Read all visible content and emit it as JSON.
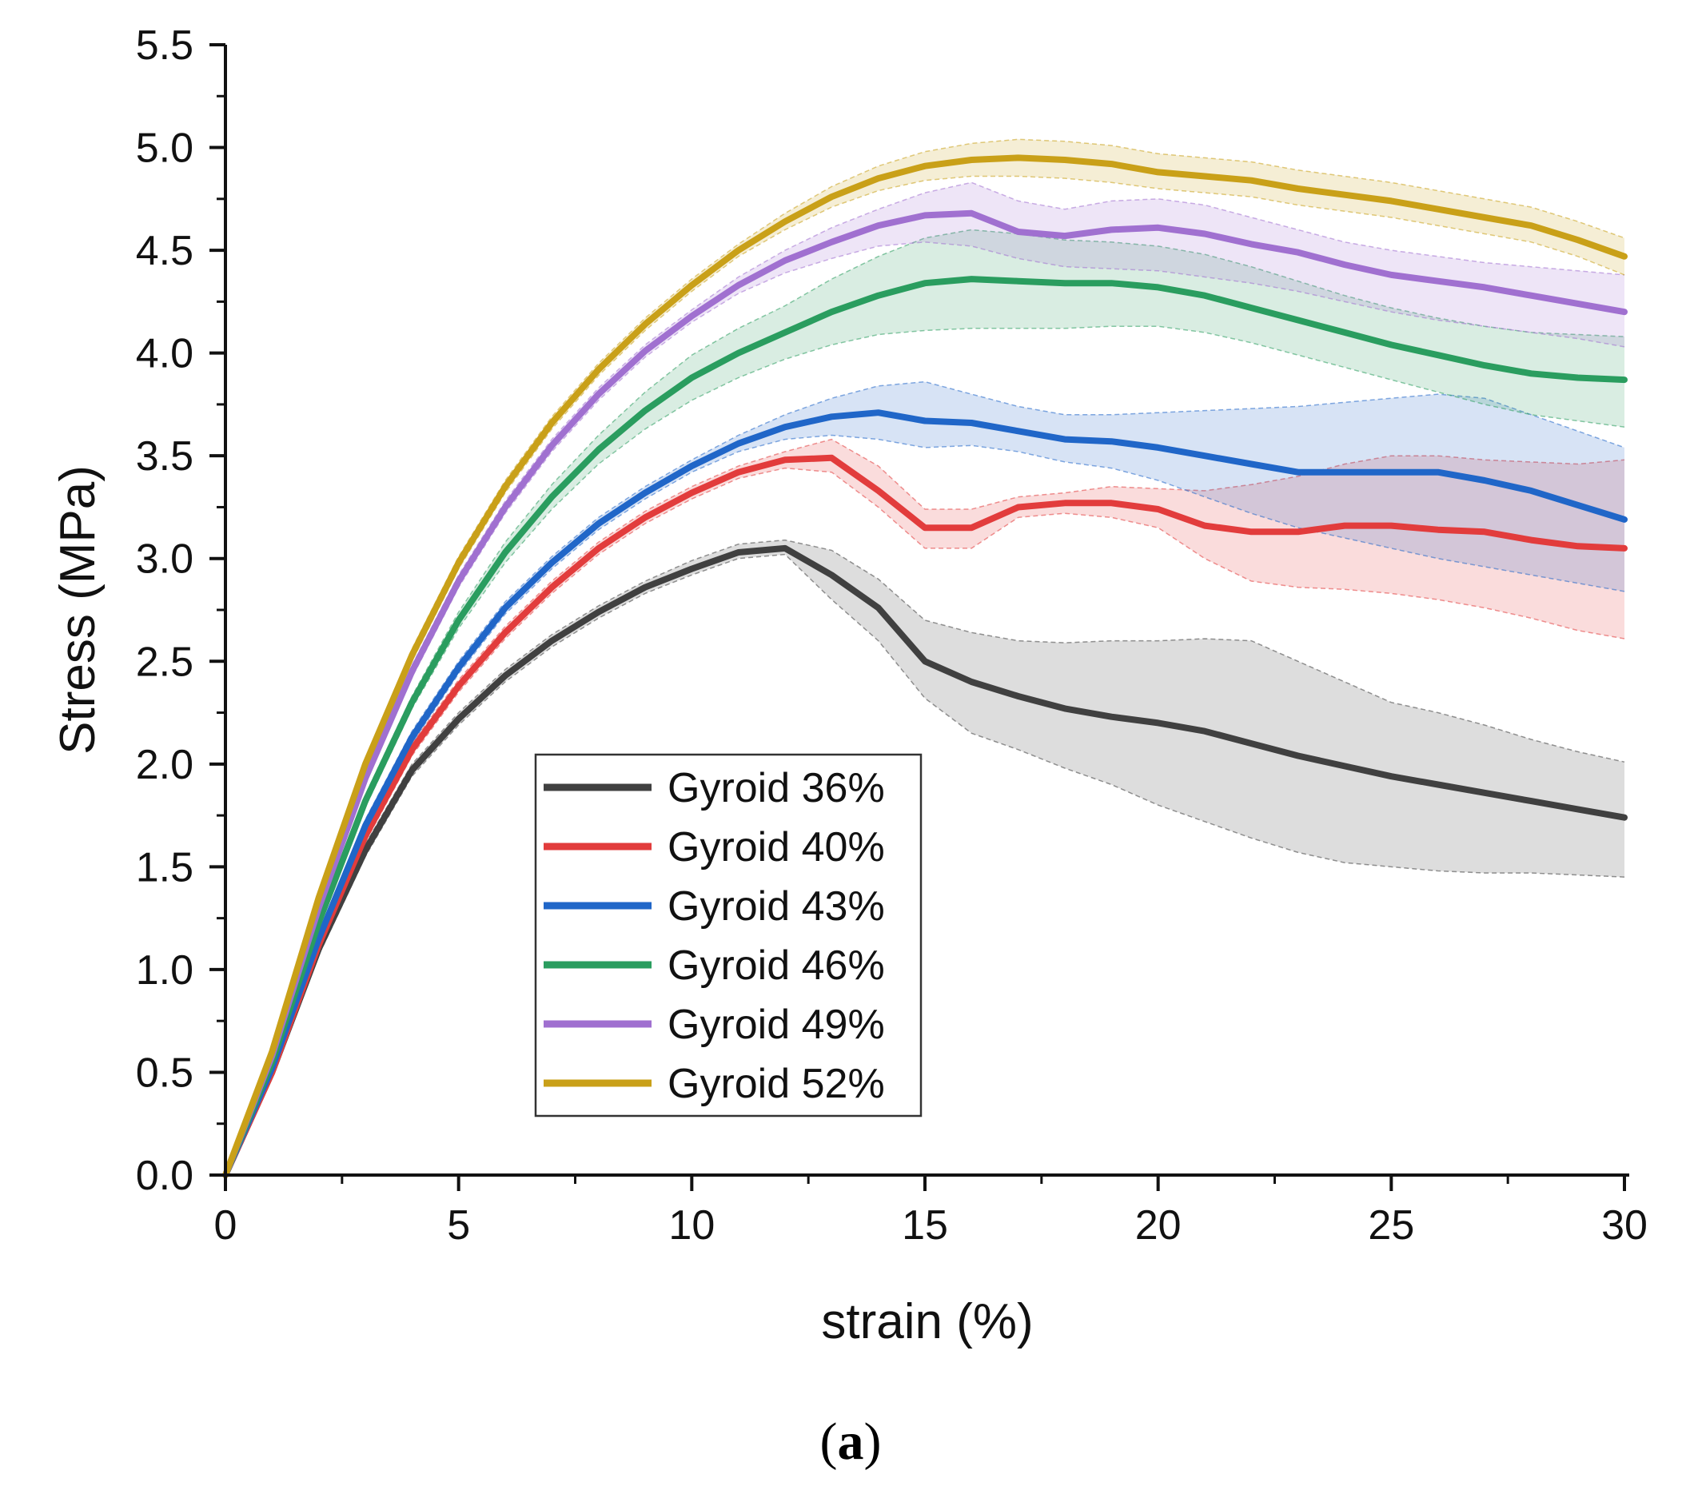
{
  "chart_data": {
    "type": "line",
    "title": "",
    "xlabel": "strain (%)",
    "ylabel": "Stress (MPa)",
    "xlim": [
      0,
      30
    ],
    "ylim": [
      0,
      5.5
    ],
    "xticks": [
      "0",
      "5",
      "10",
      "15",
      "20",
      "25",
      "30"
    ],
    "yticks": [
      "0.0",
      "0.5",
      "1.0",
      "1.5",
      "2.0",
      "2.5",
      "3.0",
      "3.5",
      "4.0",
      "4.5",
      "5.0",
      "5.5"
    ],
    "grid": false,
    "legend_position": "lower-center",
    "panel_label": "a",
    "panel_label_open": "(",
    "panel_label_close": ")",
    "series": [
      {
        "name": "Gyroid 36%",
        "color": "#404040",
        "x": [
          0,
          1,
          2,
          3,
          4,
          5,
          6,
          7,
          8,
          9,
          10,
          11,
          12,
          13,
          14,
          15,
          16,
          17,
          18,
          19,
          20,
          21,
          22,
          23,
          24,
          25,
          26,
          27,
          28,
          29,
          30
        ],
        "y": [
          0,
          0.5,
          1.1,
          1.58,
          1.97,
          2.22,
          2.43,
          2.6,
          2.74,
          2.86,
          2.95,
          3.03,
          3.05,
          2.92,
          2.76,
          2.5,
          2.4,
          2.33,
          2.27,
          2.23,
          2.2,
          2.16,
          2.1,
          2.04,
          1.99,
          1.94,
          1.9,
          1.86,
          1.82,
          1.78,
          1.74
        ],
        "lower": [
          0,
          0.48,
          1.07,
          1.55,
          1.94,
          2.19,
          2.4,
          2.57,
          2.71,
          2.83,
          2.92,
          3.0,
          3.02,
          2.8,
          2.6,
          2.32,
          2.15,
          2.07,
          1.98,
          1.9,
          1.8,
          1.72,
          1.64,
          1.57,
          1.52,
          1.5,
          1.48,
          1.47,
          1.47,
          1.46,
          1.45
        ],
        "upper": [
          0,
          0.52,
          1.13,
          1.61,
          2.0,
          2.25,
          2.46,
          2.63,
          2.77,
          2.89,
          2.99,
          3.07,
          3.09,
          3.04,
          2.9,
          2.7,
          2.64,
          2.6,
          2.59,
          2.6,
          2.6,
          2.61,
          2.6,
          2.5,
          2.4,
          2.3,
          2.25,
          2.19,
          2.12,
          2.06,
          2.01
        ]
      },
      {
        "name": "Gyroid 40%",
        "color": "#e23c3c",
        "x": [
          0,
          1,
          2,
          3,
          4,
          5,
          6,
          7,
          8,
          9,
          10,
          11,
          12,
          13,
          14,
          15,
          16,
          17,
          18,
          19,
          20,
          21,
          22,
          23,
          24,
          25,
          26,
          27,
          28,
          29,
          30
        ],
        "y": [
          0,
          0.5,
          1.12,
          1.65,
          2.07,
          2.38,
          2.64,
          2.86,
          3.05,
          3.2,
          3.32,
          3.42,
          3.48,
          3.49,
          3.33,
          3.15,
          3.15,
          3.25,
          3.27,
          3.27,
          3.24,
          3.16,
          3.13,
          3.13,
          3.16,
          3.16,
          3.14,
          3.13,
          3.09,
          3.06,
          3.05
        ],
        "lower": [
          0,
          0.48,
          1.09,
          1.62,
          2.04,
          2.35,
          2.61,
          2.83,
          3.02,
          3.17,
          3.29,
          3.39,
          3.44,
          3.42,
          3.25,
          3.05,
          3.05,
          3.2,
          3.22,
          3.2,
          3.15,
          3.0,
          2.89,
          2.86,
          2.85,
          2.83,
          2.8,
          2.76,
          2.71,
          2.65,
          2.61
        ],
        "upper": [
          0,
          0.52,
          1.15,
          1.68,
          2.1,
          2.41,
          2.67,
          2.89,
          3.08,
          3.23,
          3.35,
          3.45,
          3.52,
          3.58,
          3.45,
          3.24,
          3.24,
          3.3,
          3.32,
          3.35,
          3.34,
          3.33,
          3.36,
          3.4,
          3.46,
          3.5,
          3.5,
          3.48,
          3.47,
          3.46,
          3.48
        ]
      },
      {
        "name": "Gyroid 43%",
        "color": "#2066c8",
        "x": [
          0,
          1,
          2,
          3,
          4,
          5,
          6,
          7,
          8,
          9,
          10,
          11,
          12,
          13,
          14,
          15,
          16,
          17,
          18,
          19,
          20,
          21,
          22,
          23,
          24,
          25,
          26,
          27,
          28,
          29,
          30
        ],
        "y": [
          0,
          0.52,
          1.15,
          1.7,
          2.13,
          2.47,
          2.76,
          2.98,
          3.17,
          3.32,
          3.45,
          3.56,
          3.64,
          3.69,
          3.71,
          3.67,
          3.66,
          3.62,
          3.58,
          3.57,
          3.54,
          3.5,
          3.46,
          3.42,
          3.42,
          3.42,
          3.42,
          3.38,
          3.33,
          3.26,
          3.19
        ],
        "lower": [
          0,
          0.5,
          1.12,
          1.67,
          2.1,
          2.44,
          2.73,
          2.95,
          3.14,
          3.29,
          3.42,
          3.52,
          3.58,
          3.6,
          3.58,
          3.54,
          3.55,
          3.52,
          3.47,
          3.44,
          3.38,
          3.3,
          3.22,
          3.15,
          3.1,
          3.05,
          3.0,
          2.96,
          2.92,
          2.88,
          2.84
        ],
        "upper": [
          0,
          0.54,
          1.18,
          1.73,
          2.16,
          2.5,
          2.79,
          3.01,
          3.2,
          3.35,
          3.48,
          3.6,
          3.7,
          3.78,
          3.84,
          3.86,
          3.8,
          3.74,
          3.7,
          3.7,
          3.71,
          3.72,
          3.73,
          3.74,
          3.76,
          3.78,
          3.8,
          3.78,
          3.7,
          3.62,
          3.54
        ]
      },
      {
        "name": "Gyroid 46%",
        "color": "#2a9d5f",
        "x": [
          0,
          1,
          2,
          3,
          4,
          5,
          6,
          7,
          8,
          9,
          10,
          11,
          12,
          13,
          14,
          15,
          16,
          17,
          18,
          19,
          20,
          21,
          22,
          23,
          24,
          25,
          26,
          27,
          28,
          29,
          30
        ],
        "y": [
          0,
          0.55,
          1.23,
          1.82,
          2.3,
          2.7,
          3.03,
          3.3,
          3.53,
          3.72,
          3.88,
          4.0,
          4.1,
          4.2,
          4.28,
          4.34,
          4.36,
          4.35,
          4.34,
          4.34,
          4.32,
          4.28,
          4.22,
          4.16,
          4.1,
          4.04,
          3.99,
          3.94,
          3.9,
          3.88,
          3.87
        ],
        "lower": [
          0,
          0.53,
          1.2,
          1.79,
          2.27,
          2.66,
          2.98,
          3.24,
          3.46,
          3.63,
          3.77,
          3.88,
          3.97,
          4.04,
          4.09,
          4.11,
          4.12,
          4.12,
          4.12,
          4.13,
          4.13,
          4.1,
          4.05,
          3.99,
          3.93,
          3.87,
          3.81,
          3.75,
          3.7,
          3.67,
          3.64
        ],
        "upper": [
          0,
          0.57,
          1.26,
          1.85,
          2.33,
          2.74,
          3.08,
          3.36,
          3.6,
          3.81,
          3.99,
          4.12,
          4.23,
          4.36,
          4.47,
          4.56,
          4.6,
          4.58,
          4.55,
          4.54,
          4.52,
          4.48,
          4.42,
          4.35,
          4.28,
          4.22,
          4.17,
          4.13,
          4.1,
          4.09,
          4.08
        ]
      },
      {
        "name": "Gyroid 49%",
        "color": "#a070d0",
        "x": [
          0,
          1,
          2,
          3,
          4,
          5,
          6,
          7,
          8,
          9,
          10,
          11,
          12,
          13,
          14,
          15,
          16,
          17,
          18,
          19,
          20,
          21,
          22,
          23,
          24,
          25,
          26,
          27,
          28,
          29,
          30
        ],
        "y": [
          0,
          0.58,
          1.3,
          1.93,
          2.45,
          2.89,
          3.25,
          3.55,
          3.8,
          4.01,
          4.18,
          4.33,
          4.45,
          4.54,
          4.62,
          4.67,
          4.68,
          4.59,
          4.57,
          4.6,
          4.61,
          4.58,
          4.53,
          4.49,
          4.43,
          4.38,
          4.35,
          4.32,
          4.28,
          4.24,
          4.2
        ],
        "lower": [
          0,
          0.56,
          1.27,
          1.9,
          2.42,
          2.86,
          3.22,
          3.52,
          3.77,
          3.98,
          4.15,
          4.29,
          4.39,
          4.46,
          4.52,
          4.54,
          4.52,
          4.46,
          4.42,
          4.41,
          4.4,
          4.37,
          4.34,
          4.3,
          4.25,
          4.2,
          4.16,
          4.13,
          4.1,
          4.07,
          4.03
        ],
        "upper": [
          0,
          0.6,
          1.33,
          1.96,
          2.48,
          2.92,
          3.28,
          3.58,
          3.83,
          4.04,
          4.21,
          4.37,
          4.5,
          4.61,
          4.7,
          4.78,
          4.83,
          4.74,
          4.7,
          4.74,
          4.75,
          4.72,
          4.66,
          4.6,
          4.54,
          4.5,
          4.47,
          4.44,
          4.42,
          4.4,
          4.38
        ]
      },
      {
        "name": "Gyroid 52%",
        "color": "#c9a018",
        "x": [
          0,
          1,
          2,
          3,
          4,
          5,
          6,
          7,
          8,
          9,
          10,
          11,
          12,
          13,
          14,
          15,
          16,
          17,
          18,
          19,
          20,
          21,
          22,
          23,
          24,
          25,
          26,
          27,
          28,
          29,
          30
        ],
        "y": [
          0,
          0.6,
          1.35,
          2.0,
          2.53,
          2.98,
          3.35,
          3.66,
          3.92,
          4.14,
          4.33,
          4.5,
          4.64,
          4.76,
          4.85,
          4.91,
          4.94,
          4.95,
          4.94,
          4.92,
          4.88,
          4.86,
          4.84,
          4.8,
          4.77,
          4.74,
          4.7,
          4.66,
          4.62,
          4.55,
          4.47
        ],
        "lower": [
          0,
          0.58,
          1.32,
          1.97,
          2.5,
          2.95,
          3.32,
          3.63,
          3.89,
          4.11,
          4.3,
          4.47,
          4.6,
          4.71,
          4.79,
          4.84,
          4.86,
          4.86,
          4.85,
          4.83,
          4.8,
          4.78,
          4.76,
          4.72,
          4.69,
          4.66,
          4.62,
          4.58,
          4.54,
          4.47,
          4.38
        ],
        "upper": [
          0,
          0.62,
          1.38,
          2.03,
          2.56,
          3.01,
          3.38,
          3.69,
          3.95,
          4.17,
          4.36,
          4.53,
          4.68,
          4.81,
          4.91,
          4.98,
          5.02,
          5.04,
          5.03,
          5.01,
          4.97,
          4.95,
          4.93,
          4.89,
          4.86,
          4.83,
          4.79,
          4.75,
          4.71,
          4.64,
          4.56
        ]
      }
    ]
  }
}
